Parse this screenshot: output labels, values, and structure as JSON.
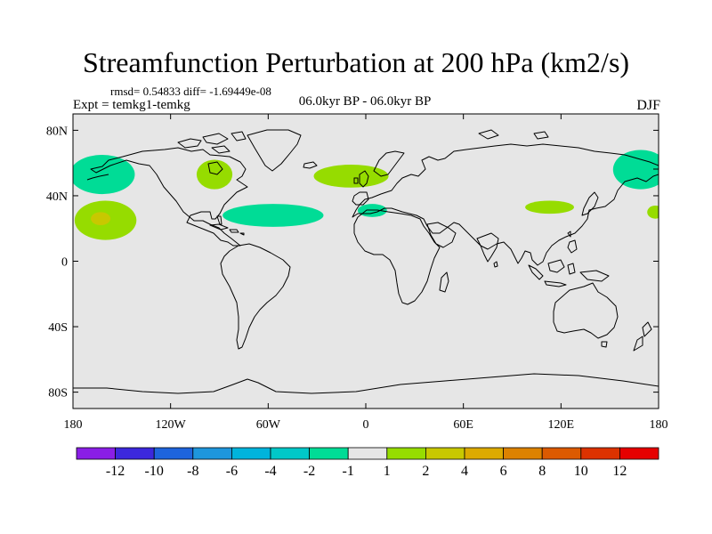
{
  "header": {
    "title": "Streamfunction Perturbation at 200 hPa (km2/s)",
    "rmsd_text": "rmsd= 0.54833 diff= -1.69449e-08",
    "experiment": "Expt = temkg1-temkg",
    "period": "06.0kyr BP - 06.0kyr BP",
    "season": "DJF"
  },
  "map": {
    "projection": "cylindrical-equidistant",
    "lon_range": [
      -180,
      180
    ],
    "lat_range": [
      -90,
      90
    ],
    "lat_ticks": [
      {
        "value": 80,
        "label": "80N"
      },
      {
        "value": 40,
        "label": "40N"
      },
      {
        "value": 0,
        "label": "0"
      },
      {
        "value": -40,
        "label": "40S"
      },
      {
        "value": -80,
        "label": "80S"
      }
    ],
    "lon_ticks": [
      {
        "value": -180,
        "label": "180"
      },
      {
        "value": -120,
        "label": "120W"
      },
      {
        "value": -60,
        "label": "60W"
      },
      {
        "value": 0,
        "label": "0"
      },
      {
        "value": 60,
        "label": "60E"
      },
      {
        "value": 120,
        "label": "120E"
      },
      {
        "value": 180,
        "label": "180"
      }
    ],
    "background_color": "#e6e6e6",
    "coast_color": "#000000"
  },
  "colorbar": {
    "colors": [
      "#8a1ee6",
      "#3c28dc",
      "#1e64dc",
      "#1e96dc",
      "#00b4dc",
      "#00c8c8",
      "#00dc96",
      "#e6e6e6",
      "#96dc00",
      "#c8c800",
      "#dcaa00",
      "#dc8200",
      "#dc5a00",
      "#dc3200",
      "#e60000"
    ],
    "labels": [
      "-12",
      "-10",
      "-8",
      "-6",
      "-4",
      "-2",
      "-1",
      "1",
      "2",
      "4",
      "6",
      "8",
      "10",
      "12"
    ]
  },
  "chart_data": {
    "type": "map-contour",
    "title": "Streamfunction Perturbation at 200 hPa (km2/s)",
    "units": "km2/s",
    "levels": [
      -12,
      -10,
      -8,
      -6,
      -4,
      -2,
      -1,
      1,
      2,
      4,
      6,
      8,
      10,
      12
    ],
    "anomalies": [
      {
        "name": "north-pacific-negative",
        "lon": -162,
        "lat": 53,
        "half_width_lon": 20,
        "half_height_lat": 12,
        "level": "-2 to -1",
        "color": "#00dc96"
      },
      {
        "name": "subtropical-pacific-positive",
        "lon": -160,
        "lat": 25,
        "half_width_lon": 19,
        "half_height_lat": 12,
        "level": "1 to 2",
        "color": "#96dc00"
      },
      {
        "name": "subtropical-pacific-core",
        "lon": -163,
        "lat": 26,
        "half_width_lon": 6,
        "half_height_lat": 4,
        "level": "2 to 4",
        "color": "#c8c800"
      },
      {
        "name": "north-america-positive",
        "lon": -93,
        "lat": 53,
        "half_width_lon": 11,
        "half_height_lat": 9,
        "level": "1 to 2",
        "color": "#96dc00"
      },
      {
        "name": "north-atlantic-positive",
        "lon": -9,
        "lat": 52,
        "half_width_lon": 23,
        "half_height_lat": 7,
        "level": "1 to 2",
        "color": "#96dc00"
      },
      {
        "name": "subtropical-atlantic-negative",
        "lon": -57,
        "lat": 28,
        "half_width_lon": 31,
        "half_height_lat": 7,
        "level": "-2 to -1",
        "color": "#00dc96"
      },
      {
        "name": "north-africa-negative",
        "lon": 4,
        "lat": 31,
        "half_width_lon": 9,
        "half_height_lat": 4,
        "level": "-2 to -1",
        "color": "#00dc96"
      },
      {
        "name": "east-asia-positive",
        "lon": 113,
        "lat": 33,
        "half_width_lon": 15,
        "half_height_lat": 4,
        "level": "1 to 2",
        "color": "#96dc00"
      },
      {
        "name": "northwest-pacific-negative",
        "lon": 169,
        "lat": 56,
        "half_width_lon": 17,
        "half_height_lat": 12,
        "level": "-2 to -1",
        "color": "#00dc96"
      },
      {
        "name": "dateline-positive",
        "lon": 178,
        "lat": 30,
        "half_width_lon": 5,
        "half_height_lat": 4,
        "level": "1 to 2",
        "color": "#96dc00"
      }
    ]
  }
}
